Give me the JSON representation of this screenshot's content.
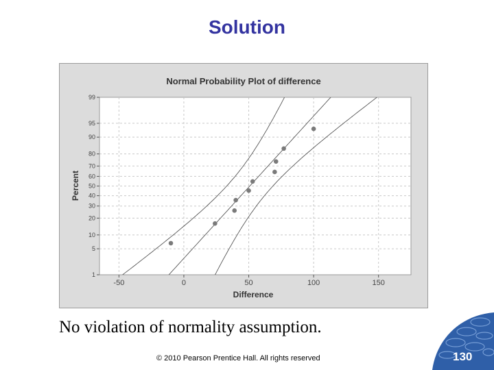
{
  "slide": {
    "title": "Solution",
    "caption": "No violation of normality assumption.",
    "copyright": "© 2010 Pearson Prentice Hall. All rights reserved",
    "page_number": "130",
    "accent_color": "#3333a0",
    "badge_color": "#2f5fa8"
  },
  "chart_data": {
    "type": "scatter",
    "title": "Normal Probability Plot of difference",
    "xlabel": "Difference",
    "ylabel": "Percent",
    "xlim": [
      -65,
      175
    ],
    "ylim": [
      1,
      99
    ],
    "y_scale": "probability",
    "x_ticks": [
      -50,
      0,
      50,
      100,
      150
    ],
    "y_ticks": [
      1,
      5,
      10,
      20,
      30,
      40,
      50,
      60,
      70,
      80,
      90,
      95,
      99
    ],
    "grid": true,
    "points": [
      {
        "x": -10,
        "y": 6.7
      },
      {
        "x": 24,
        "y": 16.3
      },
      {
        "x": 39,
        "y": 26
      },
      {
        "x": 40,
        "y": 35.6
      },
      {
        "x": 50,
        "y": 45.2
      },
      {
        "x": 53,
        "y": 54.8
      },
      {
        "x": 70,
        "y": 64.4
      },
      {
        "x": 71,
        "y": 74
      },
      {
        "x": 77,
        "y": 83.7
      },
      {
        "x": 100,
        "y": 93.3
      }
    ],
    "fit_line": {
      "mean": 50.8,
      "sd": 26.8
    },
    "confidence_band": true,
    "colors": {
      "points": "#7a7a7a",
      "lines": "#555555",
      "plot_bg": "#ffffff",
      "frame_bg": "#dcdcdc",
      "grid": "#c8c8c8"
    }
  }
}
